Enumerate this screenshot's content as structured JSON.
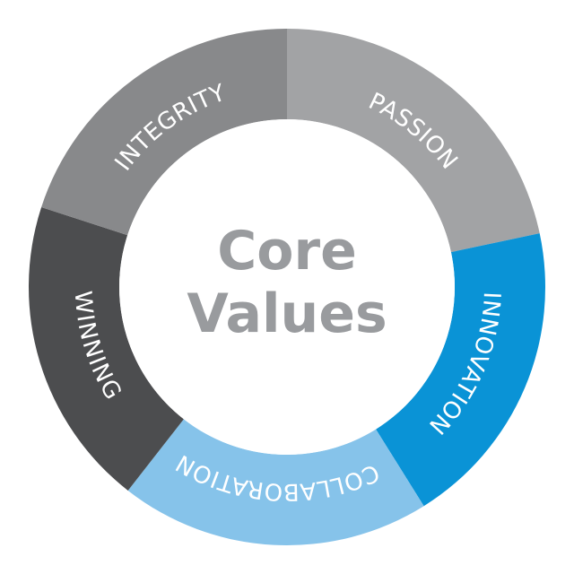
{
  "diagram": {
    "center": {
      "line1": "Core",
      "line2": "Values",
      "color": "#999b9e"
    },
    "segments": [
      {
        "label": "PASSION",
        "color": "#a2a3a5",
        "text_direction": "clockwise"
      },
      {
        "label": "INNOVATION",
        "color": "#0a93d6",
        "text_direction": "clockwise"
      },
      {
        "label": "COLLABORATION",
        "color": "#86c3ea",
        "text_direction": "clockwise"
      },
      {
        "label": "WINNING",
        "color": "#4c4d4f",
        "text_direction": "counterclockwise"
      },
      {
        "label": "INTEGRITY",
        "color": "#88898b",
        "text_direction": "clockwise"
      }
    ]
  }
}
